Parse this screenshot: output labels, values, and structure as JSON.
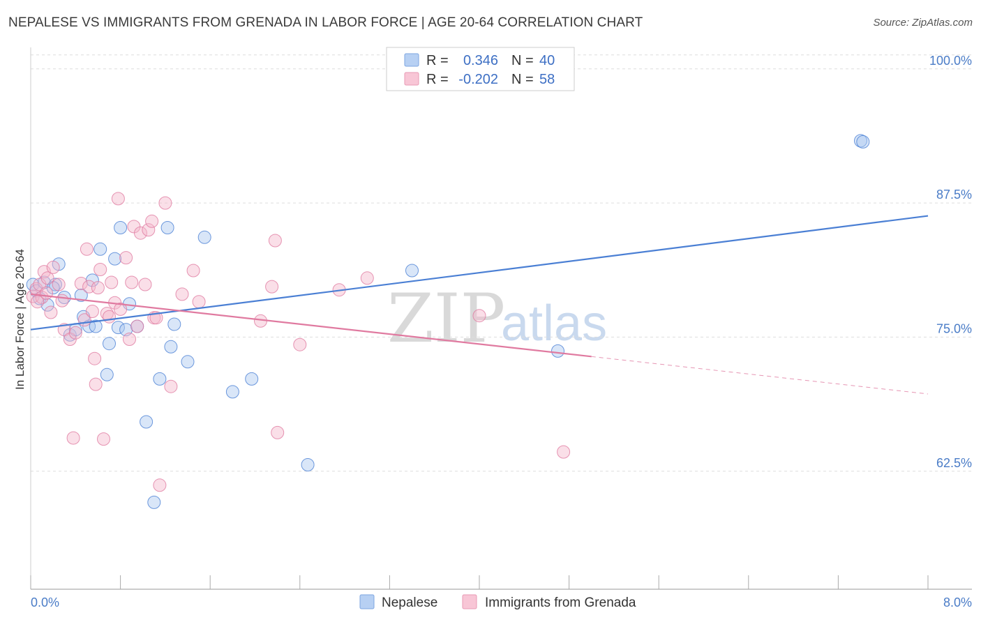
{
  "title": "NEPALESE VS IMMIGRANTS FROM GRENADA IN LABOR FORCE | AGE 20-64 CORRELATION CHART",
  "source": "Source: ZipAtlas.com",
  "colors": {
    "blue": "#4a7fd4",
    "blue_fill": "#aac8f0",
    "pink": "#e07aa0",
    "pink_fill": "#f5b8cc",
    "tick": "#4a7cc7"
  },
  "legend": {
    "rows": [
      {
        "r_label": "R =",
        "r_value": "0.346",
        "n_label": "N =",
        "n_value": "40"
      },
      {
        "r_label": "R =",
        "r_value": "-0.202",
        "n_label": "N =",
        "n_value": "58"
      }
    ]
  },
  "watermark": {
    "zip": "ZIP",
    "atlas": "atlas"
  },
  "chart_data": {
    "type": "scatter",
    "title": "NEPALESE VS IMMIGRANTS FROM GRENADA IN LABOR FORCE | AGE 20-64 CORRELATION CHART",
    "xlabel": "",
    "ylabel": "In Labor Force | Age 20-64",
    "xlim": [
      0,
      8
    ],
    "ylim": [
      51.5,
      102
    ],
    "x_tick_labels": [
      "0.0%",
      "8.0%"
    ],
    "y_ticks": [
      62.5,
      75.0,
      87.5,
      100.0
    ],
    "y_tick_labels": [
      "62.5%",
      "75.0%",
      "87.5%",
      "100.0%"
    ],
    "series": [
      {
        "name": "Nepalese",
        "color": "#4a7fd4",
        "trend": {
          "x0": 0,
          "y0": 75.7,
          "x1": 8,
          "y1": 86.3,
          "solid_until": 8
        },
        "points": [
          [
            0.02,
            79.9
          ],
          [
            0.05,
            79.3
          ],
          [
            0.08,
            78.6
          ],
          [
            0.12,
            80.1
          ],
          [
            0.15,
            78.0
          ],
          [
            0.22,
            79.9
          ],
          [
            0.25,
            81.8
          ],
          [
            0.3,
            78.7
          ],
          [
            0.35,
            75.2
          ],
          [
            0.4,
            75.7
          ],
          [
            0.45,
            78.9
          ],
          [
            0.47,
            76.9
          ],
          [
            0.52,
            76.0
          ],
          [
            0.55,
            80.3
          ],
          [
            0.58,
            76.0
          ],
          [
            0.62,
            83.2
          ],
          [
            0.68,
            71.5
          ],
          [
            0.7,
            74.4
          ],
          [
            0.75,
            82.3
          ],
          [
            0.78,
            75.9
          ],
          [
            0.8,
            85.2
          ],
          [
            0.85,
            75.7
          ],
          [
            0.88,
            78.1
          ],
          [
            0.95,
            76.0
          ],
          [
            1.03,
            67.1
          ],
          [
            1.15,
            71.1
          ],
          [
            1.22,
            85.2
          ],
          [
            1.25,
            74.1
          ],
          [
            1.28,
            76.2
          ],
          [
            1.4,
            72.7
          ],
          [
            1.55,
            84.3
          ],
          [
            1.8,
            69.9
          ],
          [
            1.97,
            71.1
          ],
          [
            2.47,
            63.1
          ],
          [
            3.4,
            81.2
          ],
          [
            4.7,
            73.7
          ],
          [
            7.4,
            93.3
          ],
          [
            7.42,
            93.2
          ],
          [
            1.1,
            59.6
          ],
          [
            0.2,
            79.6
          ]
        ]
      },
      {
        "name": "Immigrants from Grenada",
        "color": "#e07aa0",
        "trend": {
          "x0": 0,
          "y0": 79.0,
          "x1": 8,
          "y1": 69.7,
          "solid_until": 5.0
        },
        "points": [
          [
            0.02,
            78.8
          ],
          [
            0.05,
            79.5
          ],
          [
            0.08,
            79.9
          ],
          [
            0.1,
            78.7
          ],
          [
            0.12,
            81.1
          ],
          [
            0.15,
            80.5
          ],
          [
            0.18,
            77.3
          ],
          [
            0.2,
            81.5
          ],
          [
            0.25,
            79.9
          ],
          [
            0.28,
            78.4
          ],
          [
            0.3,
            75.7
          ],
          [
            0.35,
            74.8
          ],
          [
            0.38,
            65.6
          ],
          [
            0.4,
            75.4
          ],
          [
            0.45,
            80.0
          ],
          [
            0.48,
            76.6
          ],
          [
            0.5,
            83.2
          ],
          [
            0.52,
            79.7
          ],
          [
            0.55,
            77.4
          ],
          [
            0.57,
            73.0
          ],
          [
            0.58,
            70.6
          ],
          [
            0.6,
            79.6
          ],
          [
            0.62,
            81.3
          ],
          [
            0.65,
            65.5
          ],
          [
            0.68,
            77.2
          ],
          [
            0.7,
            76.9
          ],
          [
            0.72,
            80.1
          ],
          [
            0.75,
            78.2
          ],
          [
            0.78,
            87.9
          ],
          [
            0.8,
            77.6
          ],
          [
            0.85,
            82.4
          ],
          [
            0.88,
            74.8
          ],
          [
            0.9,
            80.1
          ],
          [
            0.92,
            85.3
          ],
          [
            0.95,
            76.0
          ],
          [
            0.98,
            84.7
          ],
          [
            1.02,
            79.9
          ],
          [
            1.05,
            85.0
          ],
          [
            1.08,
            85.8
          ],
          [
            1.1,
            76.8
          ],
          [
            1.12,
            76.8
          ],
          [
            1.15,
            61.2
          ],
          [
            1.2,
            87.5
          ],
          [
            1.25,
            70.4
          ],
          [
            1.35,
            79.0
          ],
          [
            1.45,
            81.2
          ],
          [
            1.5,
            78.3
          ],
          [
            2.05,
            76.5
          ],
          [
            2.15,
            79.7
          ],
          [
            2.18,
            84.0
          ],
          [
            2.2,
            66.1
          ],
          [
            2.4,
            74.3
          ],
          [
            2.75,
            79.4
          ],
          [
            3.0,
            80.5
          ],
          [
            4.0,
            77.0
          ],
          [
            4.75,
            64.3
          ],
          [
            0.06,
            78.3
          ],
          [
            0.14,
            79.1
          ]
        ]
      }
    ]
  },
  "bottom_legend": {
    "items": [
      {
        "label": "Nepalese"
      },
      {
        "label": "Immigrants from Grenada"
      }
    ]
  }
}
